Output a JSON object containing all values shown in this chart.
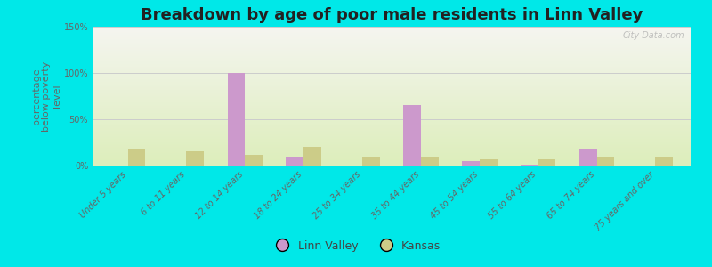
{
  "title": "Breakdown by age of poor male residents in Linn Valley",
  "ylabel": "percentage\nbelow poverty\nlevel",
  "categories": [
    "Under 5 years",
    "6 to 11 years",
    "12 to 14 years",
    "18 to 24 years",
    "25 to 34 years",
    "35 to 44 years",
    "45 to 54 years",
    "55 to 64 years",
    "65 to 74 years",
    "75 years and over"
  ],
  "linn_valley": [
    0,
    0,
    100,
    10,
    0,
    65,
    5,
    1,
    18,
    0
  ],
  "kansas": [
    18,
    15,
    12,
    20,
    10,
    10,
    7,
    7,
    10,
    10
  ],
  "linn_valley_color": "#cc99cc",
  "kansas_color": "#cccc88",
  "background_color": "#00e8e8",
  "plot_bg_top": "#f5f5f0",
  "plot_bg_bottom": "#ddeebb",
  "ylim": [
    0,
    150
  ],
  "yticks": [
    0,
    50,
    100,
    150
  ],
  "ytick_labels": [
    "0%",
    "50%",
    "100%",
    "150%"
  ],
  "bar_width": 0.3,
  "title_fontsize": 13,
  "axis_label_fontsize": 8,
  "tick_fontsize": 7,
  "legend_label_linn": "Linn Valley",
  "legend_label_kansas": "Kansas",
  "watermark": "City-Data.com"
}
